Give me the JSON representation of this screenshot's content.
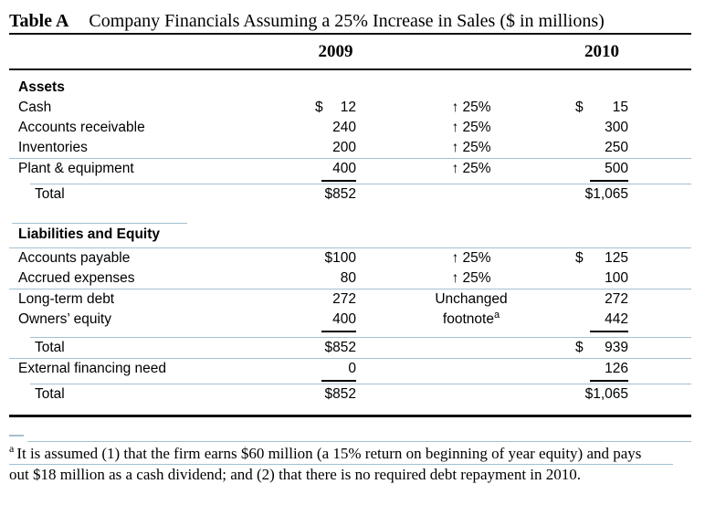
{
  "title": {
    "label": "Table A",
    "text": "Company Financials Assuming a 25% Increase in Sales ($ in millions)"
  },
  "header": {
    "col2009": "2009",
    "col2010": "2010"
  },
  "assets": {
    "heading": "Assets",
    "rows": [
      {
        "label": "Cash",
        "cur09": "$",
        "v09": "12",
        "chg": "↑ 25%",
        "cur10": "$",
        "v10": "15"
      },
      {
        "label": "Accounts receivable",
        "v09": "240",
        "chg": "↑ 25%",
        "v10": "300"
      },
      {
        "label": "Inventories",
        "v09": "200",
        "chg": "↑ 25%",
        "v10": "250"
      },
      {
        "label": "Plant & equipment",
        "v09": "400",
        "chg": "↑ 25%",
        "v10": "500"
      },
      {
        "label": "Total",
        "v09": "$852",
        "v10": "$1,065"
      }
    ]
  },
  "liabilities": {
    "heading": "Liabilities and Equity",
    "rows": [
      {
        "label": "Accounts payable",
        "v09": "$100",
        "chg": "↑ 25%",
        "cur10": "$",
        "v10": "125"
      },
      {
        "label": "Accrued expenses",
        "v09": "80",
        "chg": "↑ 25%",
        "v10": "100"
      },
      {
        "label": "Long-term debt",
        "v09": "272",
        "chg": "Unchanged",
        "v10": "272"
      },
      {
        "label": "Owners’ equity",
        "v09": "400",
        "chg": "footnote",
        "chg_sup": "a",
        "v10": "442"
      },
      {
        "label": "Total",
        "v09": "$852",
        "cur10": "$",
        "v10": "939"
      },
      {
        "label": "External financing need",
        "v09": "0",
        "v10": "126"
      },
      {
        "label": "Total",
        "v09": "$852",
        "v10": "$1,065"
      }
    ]
  },
  "footnote": {
    "marker": "a",
    "line1": "It is assumed (1) that the firm earns $60 million (a 15% return on beginning of year equity) and pays",
    "line2": "out $18 million as a cash dividend; and (2) that there is no required debt repayment in 2010."
  }
}
